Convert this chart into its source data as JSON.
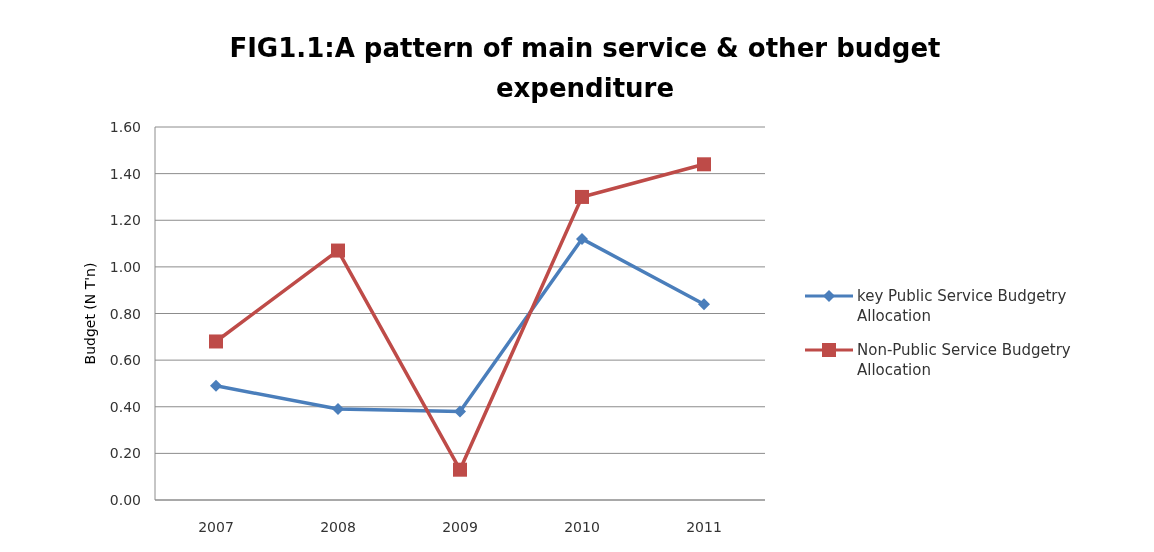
{
  "chart_data": {
    "type": "line",
    "title": "FIG1.1:A pattern of main service & other budget expenditure",
    "ylabel": "Budget (N T'n)",
    "categories": [
      "2007",
      "2008",
      "2009",
      "2010",
      "2011"
    ],
    "series": [
      {
        "name": "key Public Service Budgetry Allocation",
        "color": "#4a7ebb",
        "marker": "diamond",
        "values": [
          0.49,
          0.39,
          0.38,
          1.12,
          0.84
        ]
      },
      {
        "name": "Non-Public Service Budgetry Allocation",
        "color": "#be4b48",
        "marker": "square",
        "values": [
          0.68,
          1.07,
          0.13,
          1.3,
          1.44
        ]
      }
    ],
    "ylim": [
      0,
      1.6
    ],
    "yticks": [
      {
        "value": 0,
        "label": "0.00"
      },
      {
        "value": 0.2,
        "label": "0.20"
      },
      {
        "value": 0.4,
        "label": "0.40"
      },
      {
        "value": 0.6,
        "label": "0.60"
      },
      {
        "value": 0.8,
        "label": "0.80"
      },
      {
        "value": 1.0,
        "label": "1.00"
      },
      {
        "value": 1.2,
        "label": "1.20"
      },
      {
        "value": 1.4,
        "label": "1.40"
      },
      {
        "value": 1.6,
        "label": "1.60"
      }
    ],
    "grid": "y",
    "legend": "right",
    "line_style": "solid"
  }
}
